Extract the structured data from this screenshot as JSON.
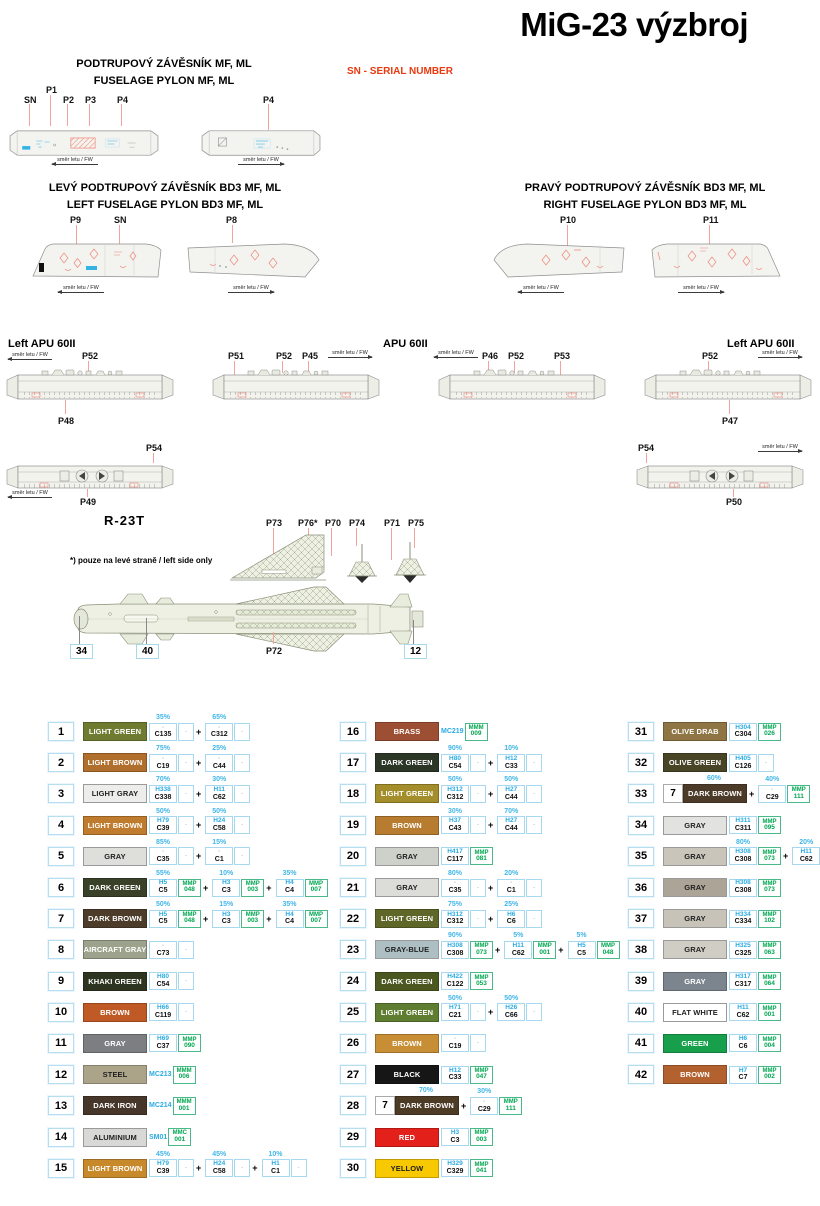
{
  "page_title": "MiG-23 výzbroj",
  "sn_note": "SN - SERIAL NUMBER",
  "fw_note": "směr letu / FW",
  "pylon_mf": {
    "title_cs": "PODTRUPOVÝ ZÁVĚSNÍK MF, ML",
    "title_en": "FUSELAGE PYLON MF, ML",
    "labels": [
      "SN",
      "P1",
      "P2",
      "P3",
      "P4"
    ],
    "label_right": "P4"
  },
  "bd3_left": {
    "title_cs": "LEVÝ PODTRUPOVÝ ZÁVĚSNÍK BD3 MF, ML",
    "title_en": "LEFT FUSELAGE PYLON BD3 MF, ML",
    "labels": [
      "P9",
      "SN",
      "P8"
    ]
  },
  "bd3_right": {
    "title_cs": "PRAVÝ PODTRUPOVÝ ZÁVĚSNÍK BD3 MF, ML",
    "title_en": "RIGHT FUSELAGE PYLON BD3 MF, ML",
    "labels": [
      "P10",
      "P11"
    ]
  },
  "apu": {
    "title_left": "Left APU 60II",
    "title_center": "APU 60II",
    "title_right": "Left APU 60II",
    "d1_top": "P52",
    "d1_bottom": "P48",
    "d2_top": [
      "P51",
      "P52",
      "P45"
    ],
    "d3_top": [
      "P46",
      "P52",
      "P53"
    ],
    "d4_top": "P52",
    "d4_bottom": "P47"
  },
  "rails": {
    "left_top": "P54",
    "left_bottom": "P49",
    "right_top": "P54",
    "right_bottom": "P50"
  },
  "r23t": {
    "title": "R-23T",
    "note": "*) pouze na levé straně / left side only",
    "fin_labels": [
      "P73",
      "P76*",
      "P70",
      "P74",
      "P71",
      "P75"
    ],
    "wing_label": "P72",
    "part_numbers": [
      "34",
      "40",
      "12"
    ]
  },
  "paint_chart": {
    "entries": [
      {
        "n": "1",
        "label": "LIGHT GREEN",
        "hex": "#6e7b31",
        "fg": "#fff",
        "mixes": [
          {
            "pct": "35%",
            "c": "C135"
          },
          {
            "pct": "65%",
            "c": "C312"
          }
        ]
      },
      {
        "n": "2",
        "label": "LIGHT BROWN",
        "hex": "#b06f2c",
        "fg": "#fff",
        "mixes": [
          {
            "pct": "75%",
            "c": "C19"
          },
          {
            "pct": "25%",
            "c": "C44"
          }
        ]
      },
      {
        "n": "3",
        "label": "LIGHT GRAY",
        "hex": "#ededeb",
        "fg": "#222",
        "bordered": true,
        "mixes": [
          {
            "pct": "70%",
            "h": "H338",
            "c": "C338"
          },
          {
            "pct": "30%",
            "h": "H11",
            "c": "C62"
          }
        ]
      },
      {
        "n": "4",
        "label": "LIGHT BROWN",
        "hex": "#c07c2e",
        "fg": "#fff",
        "mixes": [
          {
            "pct": "50%",
            "h": "H79",
            "c": "C39"
          },
          {
            "pct": "50%",
            "h": "H24",
            "c": "C58"
          }
        ]
      },
      {
        "n": "5",
        "label": "GRAY",
        "hex": "#dededa",
        "fg": "#222",
        "bordered": true,
        "mixes": [
          {
            "pct": "85%",
            "c": "C35"
          },
          {
            "pct": "15%",
            "c": "C1"
          }
        ]
      },
      {
        "n": "6",
        "label": "DARK GREEN",
        "hex": "#394128",
        "fg": "#fff",
        "mixes": [
          {
            "pct": "55%",
            "h": "H5",
            "c": "C5",
            "mmp": "048"
          },
          {
            "pct": "10%",
            "h": "H3",
            "c": "C3",
            "mmp": "003"
          },
          {
            "pct": "35%",
            "h": "H4",
            "c": "C4",
            "mmp": "007"
          }
        ]
      },
      {
        "n": "7",
        "label": "DARK BROWN",
        "hex": "#4d3c2a",
        "fg": "#fff",
        "mixes": [
          {
            "pct": "50%",
            "h": "H5",
            "c": "C5",
            "mmp": "048"
          },
          {
            "pct": "15%",
            "h": "H3",
            "c": "C3",
            "mmp": "003"
          },
          {
            "pct": "35%",
            "h": "H4",
            "c": "C4",
            "mmp": "007"
          }
        ]
      },
      {
        "n": "8",
        "label": "AIRCRAFT GRAY",
        "hex": "#9ca28b",
        "fg": "#fff",
        "mixes": [
          {
            "c": "C73"
          }
        ]
      },
      {
        "n": "9",
        "label": "KHAKI GREEN",
        "hex": "#2d341f",
        "fg": "#fff",
        "mixes": [
          {
            "h": "H80",
            "c": "C54"
          }
        ]
      },
      {
        "n": "10",
        "label": "BROWN",
        "hex": "#bf5a26",
        "fg": "#fff",
        "mixes": [
          {
            "h": "H66",
            "c": "C119"
          }
        ]
      },
      {
        "n": "11",
        "label": "GRAY",
        "hex": "#7c7e81",
        "fg": "#fff",
        "mixes": [
          {
            "h": "H69",
            "c": "C37",
            "mmp": "090"
          }
        ]
      },
      {
        "n": "12",
        "label": "STEEL",
        "hex": "#aba489",
        "fg": "#222",
        "metal": {
          "code": "MC213",
          "top": "MMM",
          "num": "006"
        }
      },
      {
        "n": "13",
        "label": "DARK IRON",
        "hex": "#47362a",
        "fg": "#fff",
        "metal": {
          "code": "MC214",
          "top": "MMM",
          "num": "001"
        }
      },
      {
        "n": "14",
        "label": "ALUMINIUM",
        "hex": "#d8d8d6",
        "fg": "#222",
        "bordered": true,
        "metal": {
          "code": "SM01",
          "top": "MMC",
          "num": "001"
        }
      },
      {
        "n": "15",
        "label": "LIGHT BROWN",
        "hex": "#c8892b",
        "fg": "#fff",
        "mixes": [
          {
            "pct": "45%",
            "h": "H79",
            "c": "C39"
          },
          {
            "pct": "45%",
            "h": "H24",
            "c": "C58"
          },
          {
            "pct": "10%",
            "h": "H1",
            "c": "C1"
          }
        ]
      },
      {
        "n": "16",
        "label": "BRASS",
        "hex": "#9d4f34",
        "fg": "#fff",
        "metal": {
          "code": "MC219",
          "top": "MMM",
          "num": "009"
        }
      },
      {
        "n": "17",
        "label": "DARK GREEN",
        "hex": "#2c3627",
        "fg": "#fff",
        "mixes": [
          {
            "pct": "90%",
            "h": "H80",
            "c": "C54"
          },
          {
            "pct": "10%",
            "h": "H12",
            "c": "C33"
          }
        ]
      },
      {
        "n": "18",
        "label": "LIGHT GREEN",
        "hex": "#a48e2b",
        "fg": "#fff",
        "mixes": [
          {
            "pct": "50%",
            "h": "H312",
            "c": "C312"
          },
          {
            "pct": "50%",
            "h": "H27",
            "c": "C44"
          }
        ]
      },
      {
        "n": "19",
        "label": "BROWN",
        "hex": "#b87c31",
        "fg": "#fff",
        "mixes": [
          {
            "pct": "30%",
            "h": "H37",
            "c": "C43"
          },
          {
            "pct": "70%",
            "h": "H27",
            "c": "C44"
          }
        ]
      },
      {
        "n": "20",
        "label": "GRAY",
        "hex": "#cdd1c9",
        "fg": "#222",
        "bordered": true,
        "mixes": [
          {
            "h": "H417",
            "c": "C117",
            "mmp": "081"
          }
        ]
      },
      {
        "n": "21",
        "label": "GRAY",
        "hex": "#dcdcd8",
        "fg": "#222",
        "bordered": true,
        "mixes": [
          {
            "pct": "80%",
            "c": "C35"
          },
          {
            "pct": "20%",
            "c": "C1"
          }
        ]
      },
      {
        "n": "22",
        "label": "LIGHT GREEN",
        "hex": "#5e6628",
        "fg": "#fff",
        "mixes": [
          {
            "pct": "75%",
            "h": "H312",
            "c": "C312"
          },
          {
            "pct": "25%",
            "h": "H6",
            "c": "C6"
          }
        ]
      },
      {
        "n": "23",
        "label": "GRAY-BLUE",
        "hex": "#aebfc3",
        "fg": "#222",
        "bordered": true,
        "mixes": [
          {
            "pct": "90%",
            "h": "H308",
            "c": "C308",
            "mmp": "073"
          },
          {
            "pct": "5%",
            "h": "H11",
            "c": "C62",
            "mmp": "001"
          },
          {
            "pct": "5%",
            "h": "H5",
            "c": "C5",
            "mmp": "048"
          }
        ]
      },
      {
        "n": "24",
        "label": "DARK GREEN",
        "hex": "#4a5820",
        "fg": "#fff",
        "mixes": [
          {
            "h": "H422",
            "c": "C122",
            "mmp": "053"
          }
        ]
      },
      {
        "n": "25",
        "label": "LIGHT GREEN",
        "hex": "#5e7d30",
        "fg": "#fff",
        "mixes": [
          {
            "pct": "50%",
            "h": "H71",
            "c": "C21"
          },
          {
            "pct": "50%",
            "h": "H26",
            "c": "C66"
          }
        ]
      },
      {
        "n": "26",
        "label": "BROWN",
        "hex": "#c78e36",
        "fg": "#fff",
        "mixes": [
          {
            "c": "C19"
          }
        ]
      },
      {
        "n": "27",
        "label": "BLACK",
        "hex": "#161616",
        "fg": "#fff",
        "mixes": [
          {
            "h": "H12",
            "c": "C33",
            "mmp": "047"
          }
        ]
      },
      {
        "n": "28",
        "label": "DARK BROWN",
        "hex": "#4d3b26",
        "fg": "#fff",
        "prefix": {
          "num": "7",
          "pct": "70%"
        },
        "mixes": [
          {
            "pct": "30%",
            "c": "C29",
            "mmp": "111"
          }
        ]
      },
      {
        "n": "29",
        "label": "RED",
        "hex": "#e3211a",
        "fg": "#fff",
        "mixes": [
          {
            "h": "H3",
            "c": "C3",
            "mmp": "003"
          }
        ]
      },
      {
        "n": "30",
        "label": "YELLOW",
        "hex": "#f8c801",
        "fg": "#222",
        "mixes": [
          {
            "h": "H329",
            "c": "C329",
            "mmp": "041"
          }
        ]
      },
      {
        "n": "31",
        "label": "OLIVE DRAB",
        "hex": "#8e7543",
        "fg": "#fff",
        "mixes": [
          {
            "h": "H304",
            "c": "C304",
            "mmp": "026"
          }
        ]
      },
      {
        "n": "32",
        "label": "OLIVE GREEN",
        "hex": "#484527",
        "fg": "#fff",
        "mixes": [
          {
            "h": "H405",
            "c": "C126"
          }
        ]
      },
      {
        "n": "33",
        "label": "DARK BROWN",
        "hex": "#4d3b29",
        "fg": "#fff",
        "prefix": {
          "num": "7",
          "pct": "60%"
        },
        "mixes": [
          {
            "pct": "40%",
            "c": "C29",
            "mmp": "111"
          }
        ]
      },
      {
        "n": "34",
        "label": "GRAY",
        "hex": "#e2e2e0",
        "fg": "#222",
        "bordered": true,
        "mixes": [
          {
            "h": "H311",
            "c": "C311",
            "mmp": "095"
          }
        ]
      },
      {
        "n": "35",
        "label": "GRAY",
        "hex": "#cac5bb",
        "fg": "#222",
        "bordered": true,
        "mixes": [
          {
            "pct": "80%",
            "h": "H308",
            "c": "C308",
            "mmp": "073"
          },
          {
            "pct": "20%",
            "h": "H11",
            "c": "C62",
            "mmp": "001"
          }
        ]
      },
      {
        "n": "36",
        "label": "GRAY",
        "hex": "#aca496",
        "fg": "#222",
        "bordered": true,
        "mixes": [
          {
            "h": "H308",
            "c": "C308",
            "mmp": "073"
          }
        ]
      },
      {
        "n": "37",
        "label": "GRAY",
        "hex": "#c7c3b9",
        "fg": "#222",
        "bordered": true,
        "mixes": [
          {
            "h": "H334",
            "c": "C334",
            "mmp": "102"
          }
        ]
      },
      {
        "n": "38",
        "label": "GRAY",
        "hex": "#d0cdc5",
        "fg": "#222",
        "bordered": true,
        "mixes": [
          {
            "h": "H325",
            "c": "C325",
            "mmp": "063"
          }
        ]
      },
      {
        "n": "39",
        "label": "GRAY",
        "hex": "#7c848d",
        "fg": "#fff",
        "mixes": [
          {
            "h": "H317",
            "c": "C317",
            "mmp": "064"
          }
        ]
      },
      {
        "n": "40",
        "label": "FLAT WHITE",
        "hex": "#ffffff",
        "fg": "#222",
        "bordered": true,
        "mixes": [
          {
            "h": "H11",
            "c": "C62",
            "mmp": "001"
          }
        ]
      },
      {
        "n": "41",
        "label": "GREEN",
        "hex": "#179f4c",
        "fg": "#fff",
        "mixes": [
          {
            "h": "H6",
            "c": "C6",
            "mmp": "004"
          }
        ]
      },
      {
        "n": "42",
        "label": "BROWN",
        "hex": "#b3612f",
        "fg": "#fff",
        "mixes": [
          {
            "h": "H7",
            "c": "C7",
            "mmp": "002"
          }
        ]
      }
    ]
  }
}
